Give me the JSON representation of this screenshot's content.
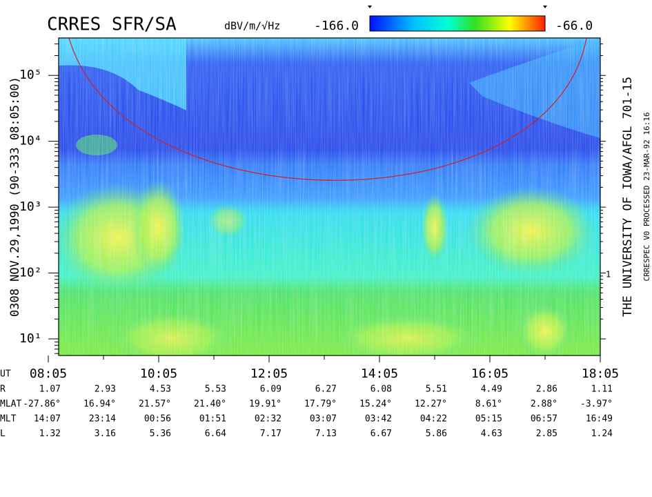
{
  "chart_data": {
    "type": "spectrogram",
    "title": "CRRES SFR/SA",
    "colorbar": {
      "label": "dBV/m/√Hz",
      "clim": [
        {
          "value": -166,
          "label": "-166.0"
        },
        {
          "value": -66,
          "label": "-66.0"
        }
      ]
    },
    "ylabel": "0308   NOV.29,1990   (90-333 08:05:00)",
    "credit": "THE UNIVERSITY OF IOWA/AFGL 701-15",
    "processing": "CRRESPEC V0    PROCESSED 23-MAR-92  16:16",
    "right_axis_label": "1",
    "log_y": true,
    "ylim": [
      5.6,
      370000
    ],
    "yticks": [
      {
        "value": 10,
        "label": "10¹"
      },
      {
        "value": 100,
        "label": "10²"
      },
      {
        "value": 1000,
        "label": "10³"
      },
      {
        "value": 10000,
        "label": "10⁴"
      },
      {
        "value": 100000,
        "label": "10⁵"
      }
    ],
    "xlabel": "UT",
    "xticks": [
      "08:05",
      "10:05",
      "12:05",
      "14:05",
      "16:05",
      "18:05"
    ],
    "ephemeris": [
      {
        "label": "R",
        "values": [
          "1.07",
          "2.93",
          "4.53",
          "5.53",
          "6.09",
          "6.27",
          "6.08",
          "5.51",
          "4.49",
          "2.86",
          "1.11"
        ]
      },
      {
        "label": "MLAT",
        "values": [
          "-27.86°",
          "16.94°",
          "21.57°",
          "21.40°",
          "19.91°",
          "17.79°",
          "15.24°",
          "12.27°",
          "8.61°",
          "2.88°",
          "-3.97°"
        ]
      },
      {
        "label": "MLT",
        "values": [
          "14:07",
          "23:14",
          "00:56",
          "01:51",
          "02:32",
          "03:07",
          "03:42",
          "04:22",
          "05:15",
          "06:57",
          "16:49"
        ]
      },
      {
        "label": "L",
        "values": [
          "1.32",
          "3.16",
          "5.36",
          "6.64",
          "7.17",
          "7.13",
          "6.67",
          "5.86",
          "4.63",
          "2.85",
          "1.24"
        ]
      }
    ]
  }
}
